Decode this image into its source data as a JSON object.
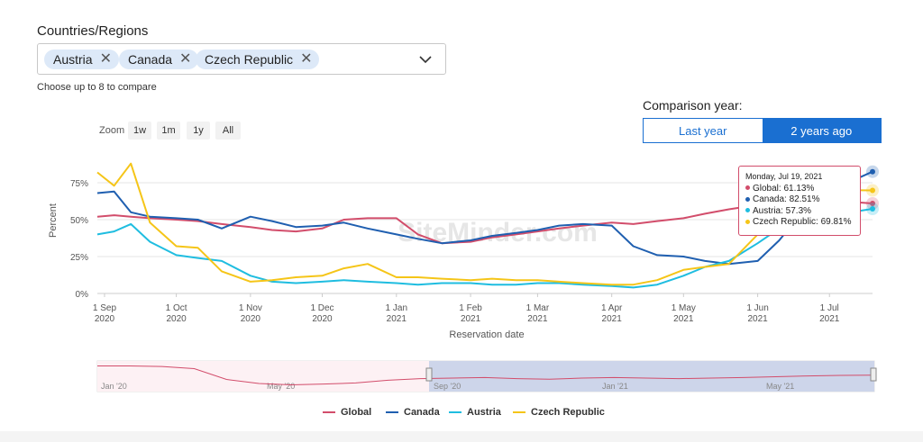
{
  "filter": {
    "title": "Countries/Regions",
    "chips": [
      "Austria",
      "Canada",
      "Czech Republic"
    ],
    "hint": "Choose up to 8 to compare"
  },
  "comparison": {
    "label": "Comparison year:",
    "options": [
      "Last year",
      "2 years ago"
    ],
    "selected": "2 years ago"
  },
  "zoom": {
    "label": "Zoom",
    "options": [
      "1w",
      "1m",
      "1y",
      "All"
    ]
  },
  "tooltip": {
    "title": "Monday, Jul 19, 2021",
    "rows": [
      {
        "text": "Global: 61.13%",
        "color": "#d24d6b"
      },
      {
        "text": "Canada: 82.51%",
        "color": "#1f5fb0"
      },
      {
        "text": "Austria: 57.3%",
        "color": "#1fbde0"
      },
      {
        "text": "Czech Republic: 69.81%",
        "color": "#f5c518"
      }
    ]
  },
  "watermark": "SiteMinder.com",
  "chart_data": {
    "type": "line",
    "xlabel": "Reservation date",
    "ylabel": "Percent",
    "ylim": [
      0,
      100
    ],
    "y_ticks": [
      "0%",
      "25%",
      "50%",
      "75%"
    ],
    "x_ticks": [
      [
        "1 Sep",
        "2020"
      ],
      [
        "1 Oct",
        "2020"
      ],
      [
        "1 Nov",
        "2020"
      ],
      [
        "1 Dec",
        "2020"
      ],
      [
        "1 Jan",
        "2021"
      ],
      [
        "1 Feb",
        "2021"
      ],
      [
        "1 Mar",
        "2021"
      ],
      [
        "1 Apr",
        "2021"
      ],
      [
        "1 May",
        "2021"
      ],
      [
        "1 Jun",
        "2021"
      ],
      [
        "1 Jul",
        "2021"
      ]
    ],
    "x_dates": [
      "2020-08-29",
      "2020-09-05",
      "2020-09-12",
      "2020-09-20",
      "2020-10-01",
      "2020-10-10",
      "2020-10-20",
      "2020-11-01",
      "2020-11-10",
      "2020-11-20",
      "2020-12-01",
      "2020-12-10",
      "2020-12-20",
      "2021-01-01",
      "2021-01-10",
      "2021-01-20",
      "2021-02-01",
      "2021-02-10",
      "2021-02-20",
      "2021-03-01",
      "2021-03-10",
      "2021-03-20",
      "2021-04-01",
      "2021-04-10",
      "2021-04-20",
      "2021-05-01",
      "2021-05-10",
      "2021-05-20",
      "2021-06-01",
      "2021-06-10",
      "2021-06-20",
      "2021-07-01",
      "2021-07-10",
      "2021-07-19"
    ],
    "grid": true,
    "legend_position": "bottom",
    "series": [
      {
        "name": "Global",
        "color": "#d24d6b",
        "values": [
          52,
          53,
          52,
          51,
          50,
          49,
          47,
          45,
          43,
          42,
          44,
          50,
          51,
          51,
          40,
          34,
          35,
          38,
          40,
          42,
          44,
          46,
          48,
          47,
          49,
          51,
          54,
          57,
          60,
          62,
          63,
          64,
          62,
          61
        ]
      },
      {
        "name": "Canada",
        "color": "#1f5fb0",
        "values": [
          68,
          69,
          55,
          52,
          51,
          50,
          44,
          52,
          49,
          45,
          46,
          48,
          44,
          40,
          37,
          34,
          36,
          39,
          41,
          43,
          46,
          47,
          46,
          32,
          26,
          25,
          22,
          20,
          22,
          36,
          56,
          70,
          76,
          82.5
        ]
      },
      {
        "name": "Austria",
        "color": "#1fbde0",
        "values": [
          40,
          42,
          47,
          35,
          26,
          24,
          22,
          12,
          8,
          7,
          8,
          9,
          8,
          7,
          6,
          7,
          7,
          6,
          6,
          7,
          7,
          6,
          5,
          4,
          6,
          12,
          18,
          22,
          34,
          44,
          48,
          52,
          55,
          57.3
        ]
      },
      {
        "name": "Czech Republic",
        "color": "#f5c518",
        "values": [
          82,
          73,
          88,
          48,
          32,
          31,
          15,
          8,
          9,
          11,
          12,
          17,
          20,
          11,
          11,
          10,
          9,
          10,
          9,
          9,
          8,
          7,
          6,
          6,
          9,
          16,
          18,
          20,
          40,
          56,
          62,
          66,
          70,
          69.8
        ]
      }
    ]
  },
  "navigator": {
    "labels": [
      "Jan '20",
      "May '20",
      "Sep '20",
      "Jan '21",
      "May '21"
    ],
    "values": [
      95,
      95,
      93,
      85,
      45,
      30,
      25,
      28,
      32,
      42,
      48,
      50,
      52,
      48,
      46,
      50,
      52,
      50,
      48,
      50,
      52,
      55,
      58,
      60,
      61
    ]
  }
}
